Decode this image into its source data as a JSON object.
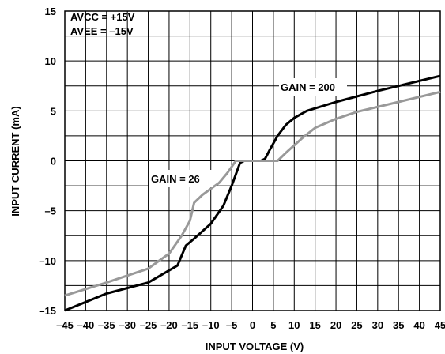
{
  "chart_data": {
    "type": "line",
    "xlabel": "INPUT VOLTAGE (V)",
    "ylabel": "INPUT CURRENT (mA)",
    "xlim": [
      -45,
      45
    ],
    "ylim": [
      -15,
      15
    ],
    "grid": true,
    "x_ticks": [
      -45,
      -40,
      -35,
      -30,
      -25,
      -20,
      -15,
      -10,
      -5,
      0,
      5,
      10,
      15,
      20,
      25,
      30,
      35,
      40,
      45
    ],
    "x_tick_labels": [
      "–45",
      "–40",
      "–35",
      "–30",
      "–25",
      "–20",
      "–15",
      "–10",
      "–5",
      "0",
      "5",
      "10",
      "15",
      "20",
      "25",
      "30",
      "35",
      "40",
      "45"
    ],
    "y_ticks": [
      15,
      10,
      5,
      0,
      -5,
      -10,
      -15
    ],
    "y_tick_labels": [
      "15",
      "10",
      "5",
      "0",
      "–5",
      "–10",
      "–15"
    ],
    "annotations": {
      "supply_line1": "AVCC = +15V",
      "supply_line2": "AVEE = –15V",
      "gain_200": "GAIN = 200",
      "gain_26": "GAIN = 26"
    },
    "series": [
      {
        "color": "#000000",
        "points": [
          [
            -45,
            -15
          ],
          [
            -35,
            -13.3
          ],
          [
            -25,
            -12.2
          ],
          [
            -18,
            -10.5
          ],
          [
            -16,
            -8.5
          ],
          [
            -14,
            -7.8
          ],
          [
            -10,
            -6.3
          ],
          [
            -7,
            -4.5
          ],
          [
            -5,
            -2.5
          ],
          [
            -3,
            -0.2
          ],
          [
            -2,
            0
          ],
          [
            2,
            0
          ],
          [
            3,
            0.2
          ],
          [
            4,
            1
          ],
          [
            6,
            2.5
          ],
          [
            8,
            3.6
          ],
          [
            10,
            4.3
          ],
          [
            13,
            5
          ],
          [
            20,
            5.9
          ],
          [
            30,
            7
          ],
          [
            45,
            8.5
          ]
        ]
      },
      {
        "color": "#999999",
        "points": [
          [
            -45,
            -13.5
          ],
          [
            -35,
            -12.2
          ],
          [
            -25,
            -10.8
          ],
          [
            -20,
            -9.3
          ],
          [
            -17,
            -7.5
          ],
          [
            -15,
            -6
          ],
          [
            -14,
            -4.2
          ],
          [
            -12,
            -3.4
          ],
          [
            -8,
            -2.2
          ],
          [
            -6,
            -1.2
          ],
          [
            -4,
            0
          ],
          [
            -2,
            0
          ],
          [
            6,
            0
          ],
          [
            8,
            0.8
          ],
          [
            12,
            2.3
          ],
          [
            15,
            3.3
          ],
          [
            20,
            4.2
          ],
          [
            25,
            4.9
          ],
          [
            35,
            5.9
          ],
          [
            45,
            6.9
          ]
        ]
      }
    ]
  }
}
